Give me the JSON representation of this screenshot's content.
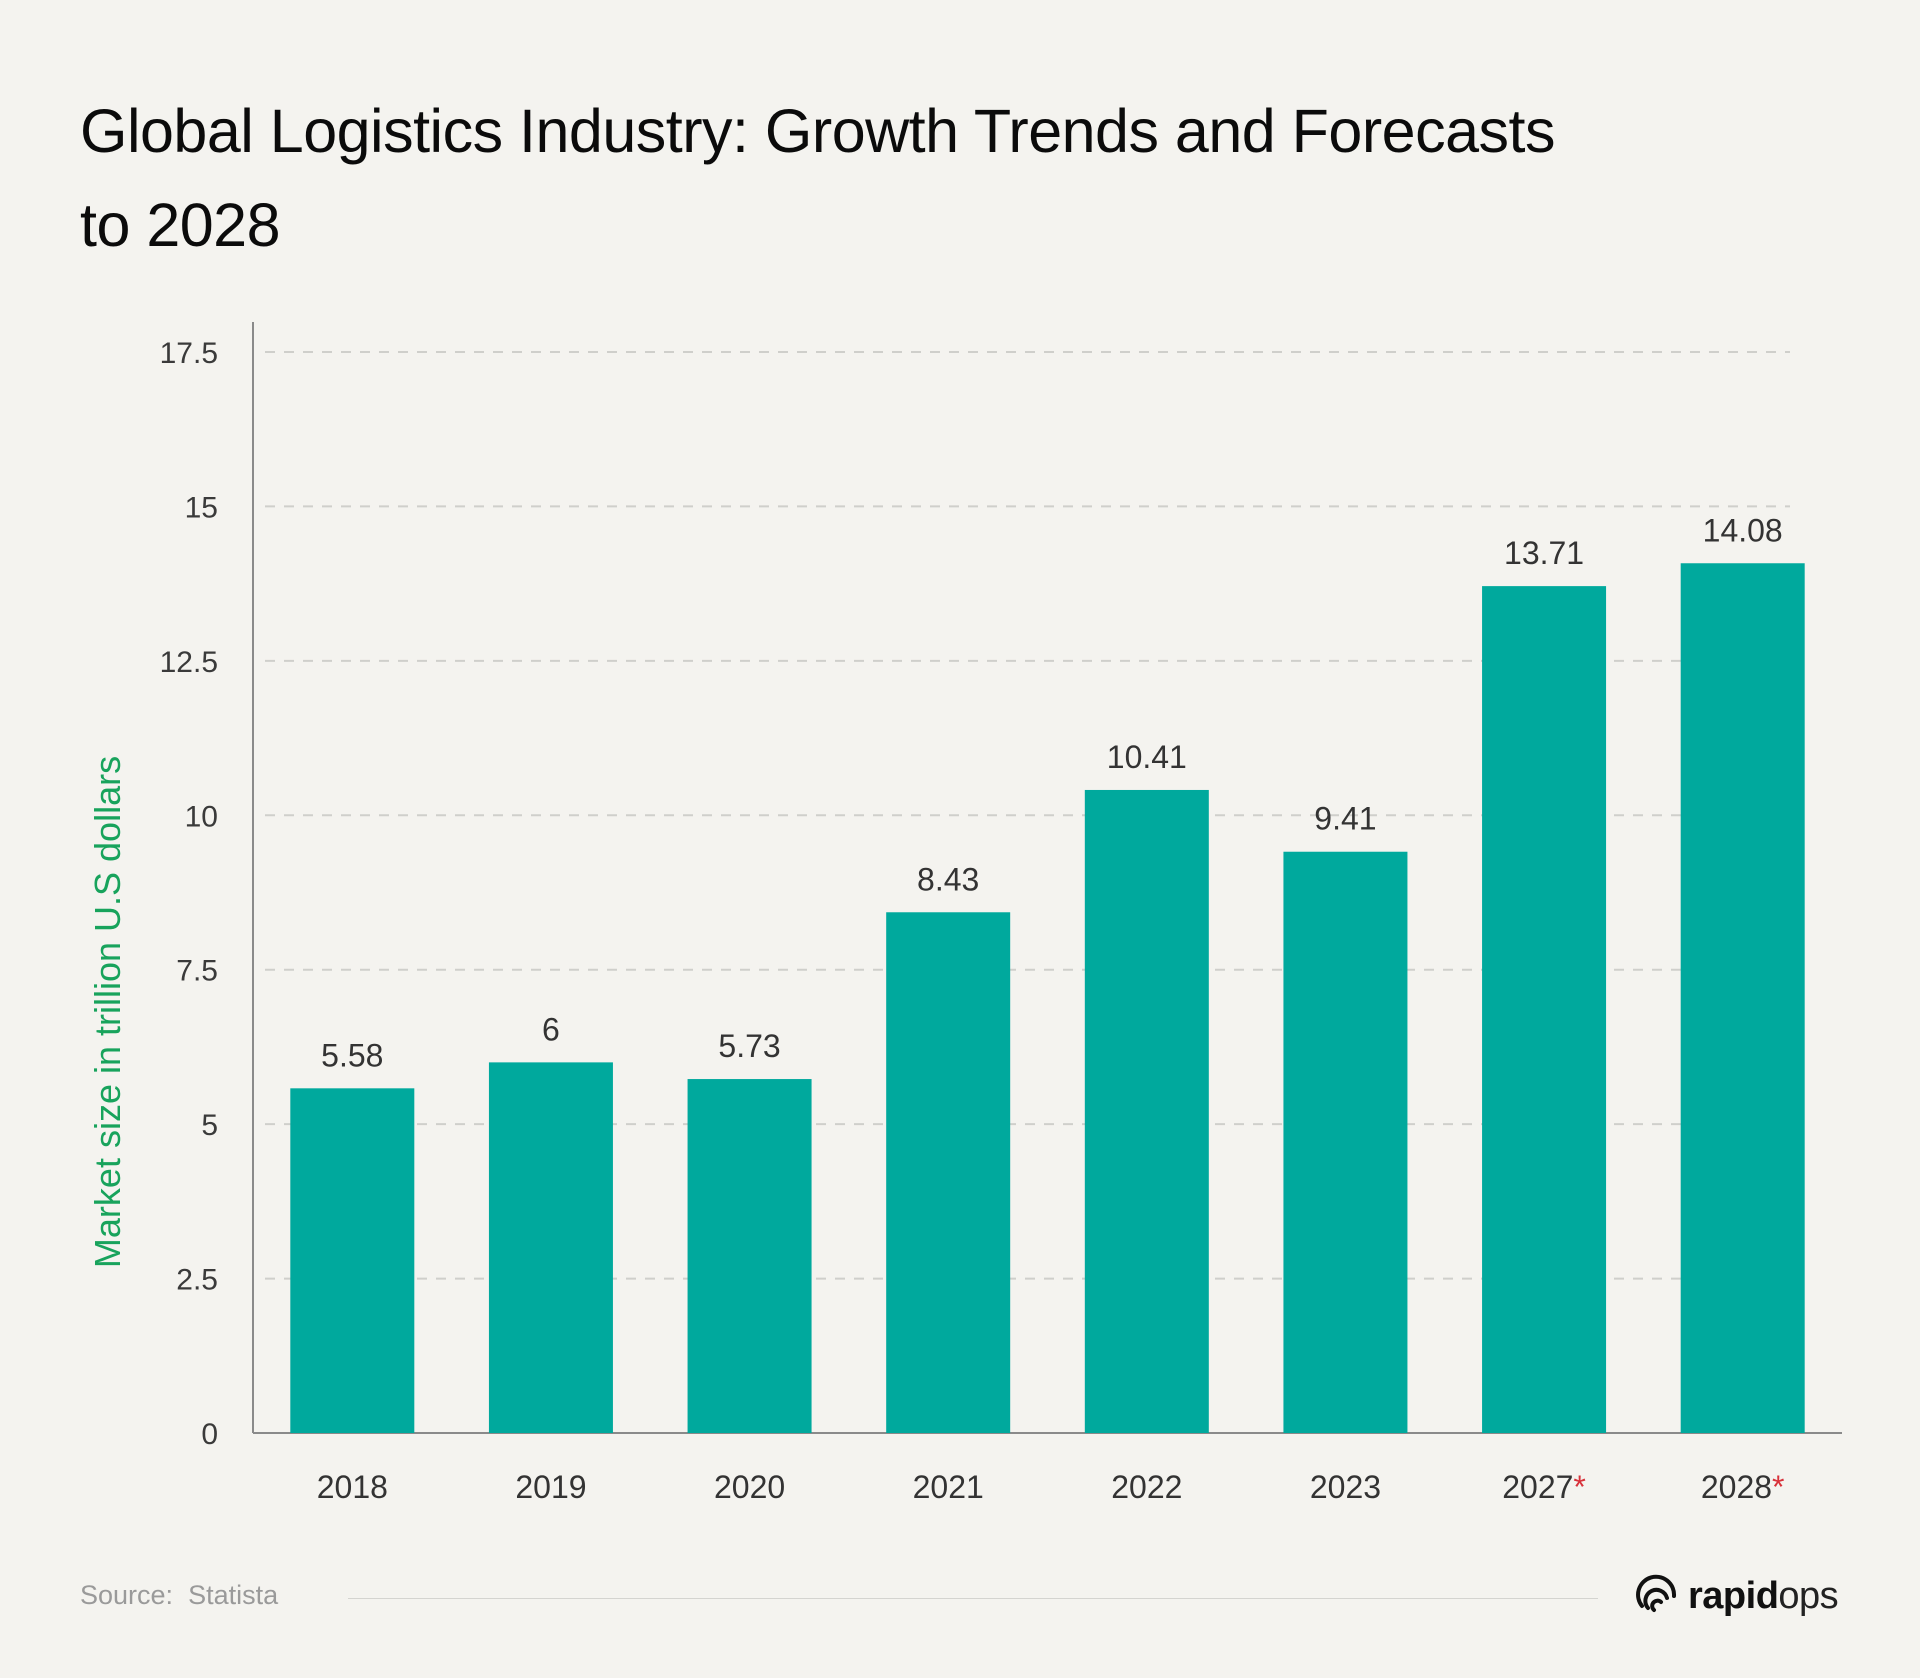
{
  "title": "Global Logistics Industry: Growth Trends and Forecasts to 2028",
  "source": {
    "label": "Source:",
    "value": "Statista"
  },
  "brand": {
    "name_bold": "rapid",
    "name_light": "ops"
  },
  "colors": {
    "bar": "#00a99d",
    "ylabel": "#18a35c",
    "forecast_marker": "#d8313a",
    "background": "#f4f3ef"
  },
  "chart_data": {
    "type": "bar",
    "title": "Global Logistics Industry: Growth Trends and Forecasts to 2028",
    "xlabel": "",
    "ylabel": "Market size in trillion U.S dollars",
    "categories": [
      "2018",
      "2019",
      "2020",
      "2021",
      "2022",
      "2023",
      "2027",
      "2028"
    ],
    "forecast_marker": "*",
    "forecast": [
      false,
      false,
      false,
      false,
      false,
      false,
      true,
      true
    ],
    "values": [
      5.58,
      6,
      5.73,
      8.43,
      10.41,
      9.41,
      13.71,
      14.08
    ],
    "value_labels": [
      "5.58",
      "6",
      "5.73",
      "8.43",
      "10.41",
      "9.41",
      "13.71",
      "14.08"
    ],
    "yticks": [
      0,
      2.5,
      5,
      7.5,
      10,
      12.5,
      15,
      17.5
    ],
    "ytick_labels": [
      "0",
      "2.5",
      "5",
      "7.5",
      "10",
      "12.5",
      "15",
      "17.5"
    ],
    "ylim": [
      0,
      17.5
    ],
    "grid": true,
    "legend": "none"
  }
}
